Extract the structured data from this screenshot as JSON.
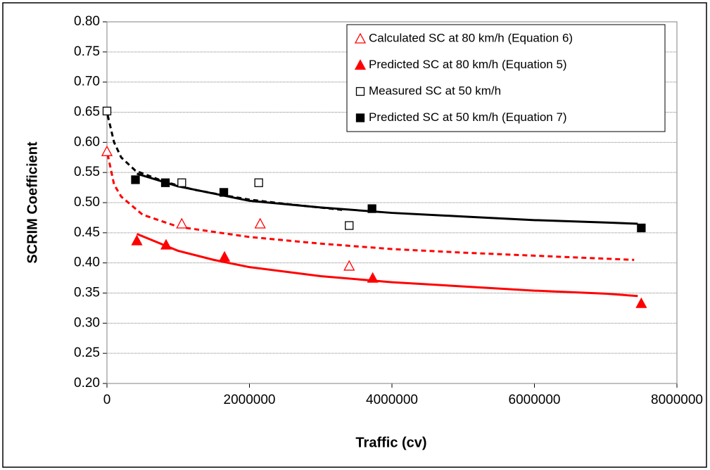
{
  "chart_data": {
    "type": "scatter",
    "x_label": "Traffic (cv)",
    "y_label": "SCRIM Coefficient",
    "xlim": [
      0,
      8000000
    ],
    "xticks": [
      0,
      2000000,
      4000000,
      6000000,
      8000000
    ],
    "ylim": [
      0.2,
      0.8
    ],
    "yticks": [
      {
        "value": 0.2,
        "label": "0.20"
      },
      0.25,
      {
        "value": 0.3,
        "label": "0.30"
      },
      0.35,
      {
        "value": 0.4,
        "label": "0.40"
      },
      0.45,
      {
        "value": 0.5,
        "label": "0.50"
      },
      0.55,
      {
        "value": 0.6,
        "label": "0.60"
      },
      0.65,
      {
        "value": 0.7,
        "label": "0.70"
      },
      0.75,
      {
        "value": 0.8,
        "label": "0.80"
      }
    ],
    "grid": true,
    "legend": "top-right",
    "series": [
      {
        "name": "Calculated SC at 80 km/h (Equation 6)",
        "color": "#ff0000",
        "marker": "triangle-open",
        "x": [
          0,
          1050000,
          2150000,
          3400000
        ],
        "values": [
          0.585,
          0.465,
          0.465,
          0.395
        ]
      },
      {
        "name": "Predicted SC at 80 km/h (Equation 5)",
        "color": "#ff0000",
        "marker": "triangle",
        "x": [
          420000,
          830000,
          1650000,
          3730000,
          7500000
        ],
        "values": [
          0.437,
          0.43,
          0.41,
          0.375,
          0.333
        ]
      },
      {
        "name": "Measured SC at 50 km/h",
        "color": "#000000",
        "marker": "square-open",
        "x": [
          0,
          1050000,
          2130000,
          3400000
        ],
        "values": [
          0.652,
          0.533,
          0.533,
          0.462
        ]
      },
      {
        "name": "Predicted SC at 50 km/h (Equation 7)",
        "color": "#000000",
        "marker": "square",
        "x": [
          400000,
          820000,
          1640000,
          3720000,
          7500000
        ],
        "values": [
          0.538,
          0.533,
          0.517,
          0.49,
          0.458
        ]
      },
      {
        "color": "#ff0000",
        "line": "dashed",
        "x": [
          10000,
          100000,
          200000,
          500000,
          1000000,
          2000000,
          3000000,
          4000000,
          5000000,
          6000000,
          7400000
        ],
        "values": [
          0.58,
          0.53,
          0.51,
          0.48,
          0.46,
          0.443,
          0.432,
          0.423,
          0.417,
          0.412,
          0.405
        ]
      },
      {
        "color": "#ff0000",
        "line": "solid",
        "x": [
          420000,
          1000000,
          1500000,
          2000000,
          3000000,
          4000000,
          5000000,
          6000000,
          7000000,
          7450000
        ],
        "values": [
          0.448,
          0.42,
          0.405,
          0.393,
          0.378,
          0.368,
          0.361,
          0.354,
          0.349,
          0.345
        ]
      },
      {
        "color": "#000000",
        "line": "dashed",
        "x": [
          10000,
          100000,
          200000,
          400000,
          800000,
          1200000,
          1600000,
          2000000,
          2500000,
          3300000
        ],
        "values": [
          0.645,
          0.6,
          0.575,
          0.553,
          0.535,
          0.522,
          0.513,
          0.505,
          0.498,
          0.488
        ]
      },
      {
        "color": "#000000",
        "line": "solid",
        "x": [
          420000,
          1000000,
          2000000,
          3000000,
          4000000,
          5000000,
          6000000,
          7000000,
          7450000
        ],
        "values": [
          0.548,
          0.527,
          0.503,
          0.492,
          0.483,
          0.477,
          0.471,
          0.467,
          0.465
        ]
      }
    ]
  }
}
